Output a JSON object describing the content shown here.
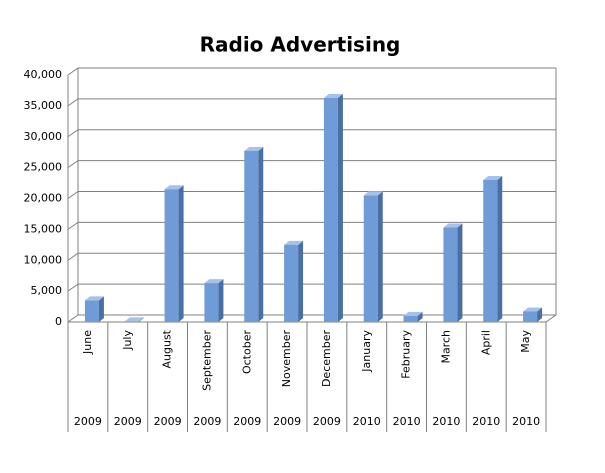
{
  "chart_data": {
    "type": "bar3d",
    "title": "Radio Advertising",
    "categories": [
      "June",
      "July",
      "August",
      "September",
      "October",
      "November",
      "December",
      "January",
      "February",
      "March",
      "April",
      "May"
    ],
    "years": [
      "2009",
      "2009",
      "2009",
      "2009",
      "2009",
      "2009",
      "2009",
      "2010",
      "2010",
      "2010",
      "2010",
      "2010"
    ],
    "values": [
      3500,
      100,
      21500,
      6300,
      27700,
      12500,
      36300,
      20500,
      1000,
      15300,
      23000,
      1700
    ],
    "color": "#6f9bd6",
    "ylim": [
      0,
      40000
    ],
    "yticks": [
      0,
      {
        "value": 5000,
        "label": "5,000"
      },
      {
        "value": 10000,
        "label": "10,000"
      },
      {
        "value": 15000,
        "label": "15,000"
      },
      {
        "value": 20000,
        "label": "20,000"
      },
      {
        "value": 25000,
        "label": "25,000"
      },
      {
        "value": 30000,
        "label": "30,000"
      },
      {
        "value": 35000,
        "label": "35,000"
      },
      {
        "value": 40000,
        "label": "40,000"
      }
    ],
    "grid": true
  }
}
